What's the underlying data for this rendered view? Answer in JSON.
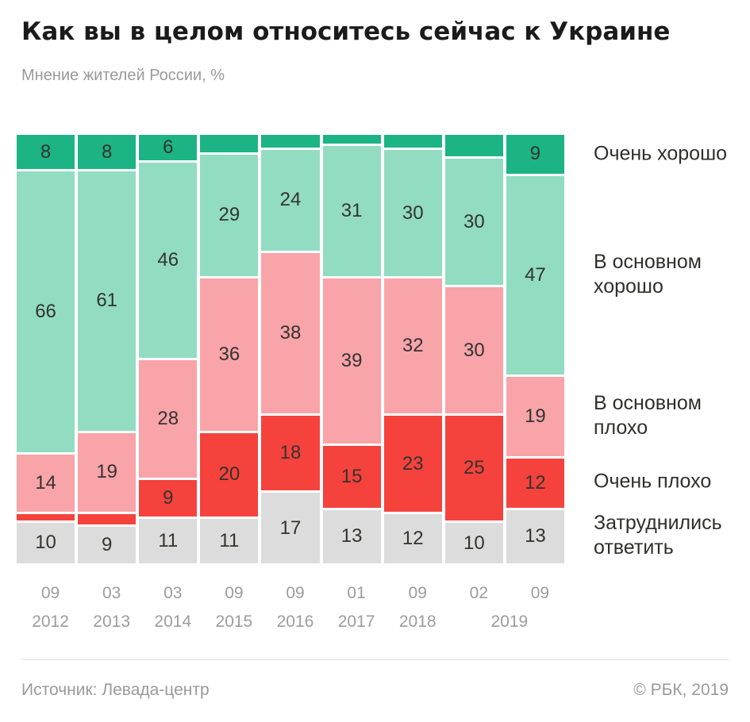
{
  "title": "Как вы в целом относитесь сейчас к Украине",
  "subtitle": "Мнение жителей России, %",
  "footer": {
    "source": "Источник: Левада-центр",
    "copyright": "© РБК, 2019"
  },
  "chart_data": {
    "type": "bar",
    "stacked": true,
    "percent": true,
    "ylim": [
      0,
      100
    ],
    "legend_position": "right",
    "label_min_show": 6,
    "x_months": [
      "09",
      "03",
      "03",
      "09",
      "09",
      "01",
      "09",
      "02",
      "09"
    ],
    "x_years": [
      {
        "label": "2012",
        "span": 1
      },
      {
        "label": "2013",
        "span": 1
      },
      {
        "label": "2014",
        "span": 1
      },
      {
        "label": "2015",
        "span": 1
      },
      {
        "label": "2016",
        "span": 1
      },
      {
        "label": "2017",
        "span": 1
      },
      {
        "label": "2018",
        "span": 1
      },
      {
        "label": "2019",
        "span": 2
      }
    ],
    "series": [
      {
        "name": "Очень хорошо",
        "color": "#1cb385",
        "values": [
          8,
          8,
          6,
          4,
          3,
          2,
          3,
          5,
          9
        ]
      },
      {
        "name": "В основном хорошо",
        "color": "#92dcc2",
        "values": [
          66,
          61,
          46,
          29,
          24,
          31,
          30,
          30,
          47
        ]
      },
      {
        "name": "В основном плохо",
        "color": "#f8a4a9",
        "values": [
          14,
          19,
          28,
          36,
          38,
          39,
          32,
          30,
          19
        ]
      },
      {
        "name": "Очень плохо",
        "color": "#f5423d",
        "values": [
          2,
          3,
          9,
          20,
          18,
          15,
          23,
          25,
          12
        ]
      },
      {
        "name": "Затруднились ответить",
        "color": "#dcdcdc",
        "values": [
          10,
          9,
          11,
          11,
          17,
          13,
          12,
          10,
          13
        ]
      }
    ]
  }
}
